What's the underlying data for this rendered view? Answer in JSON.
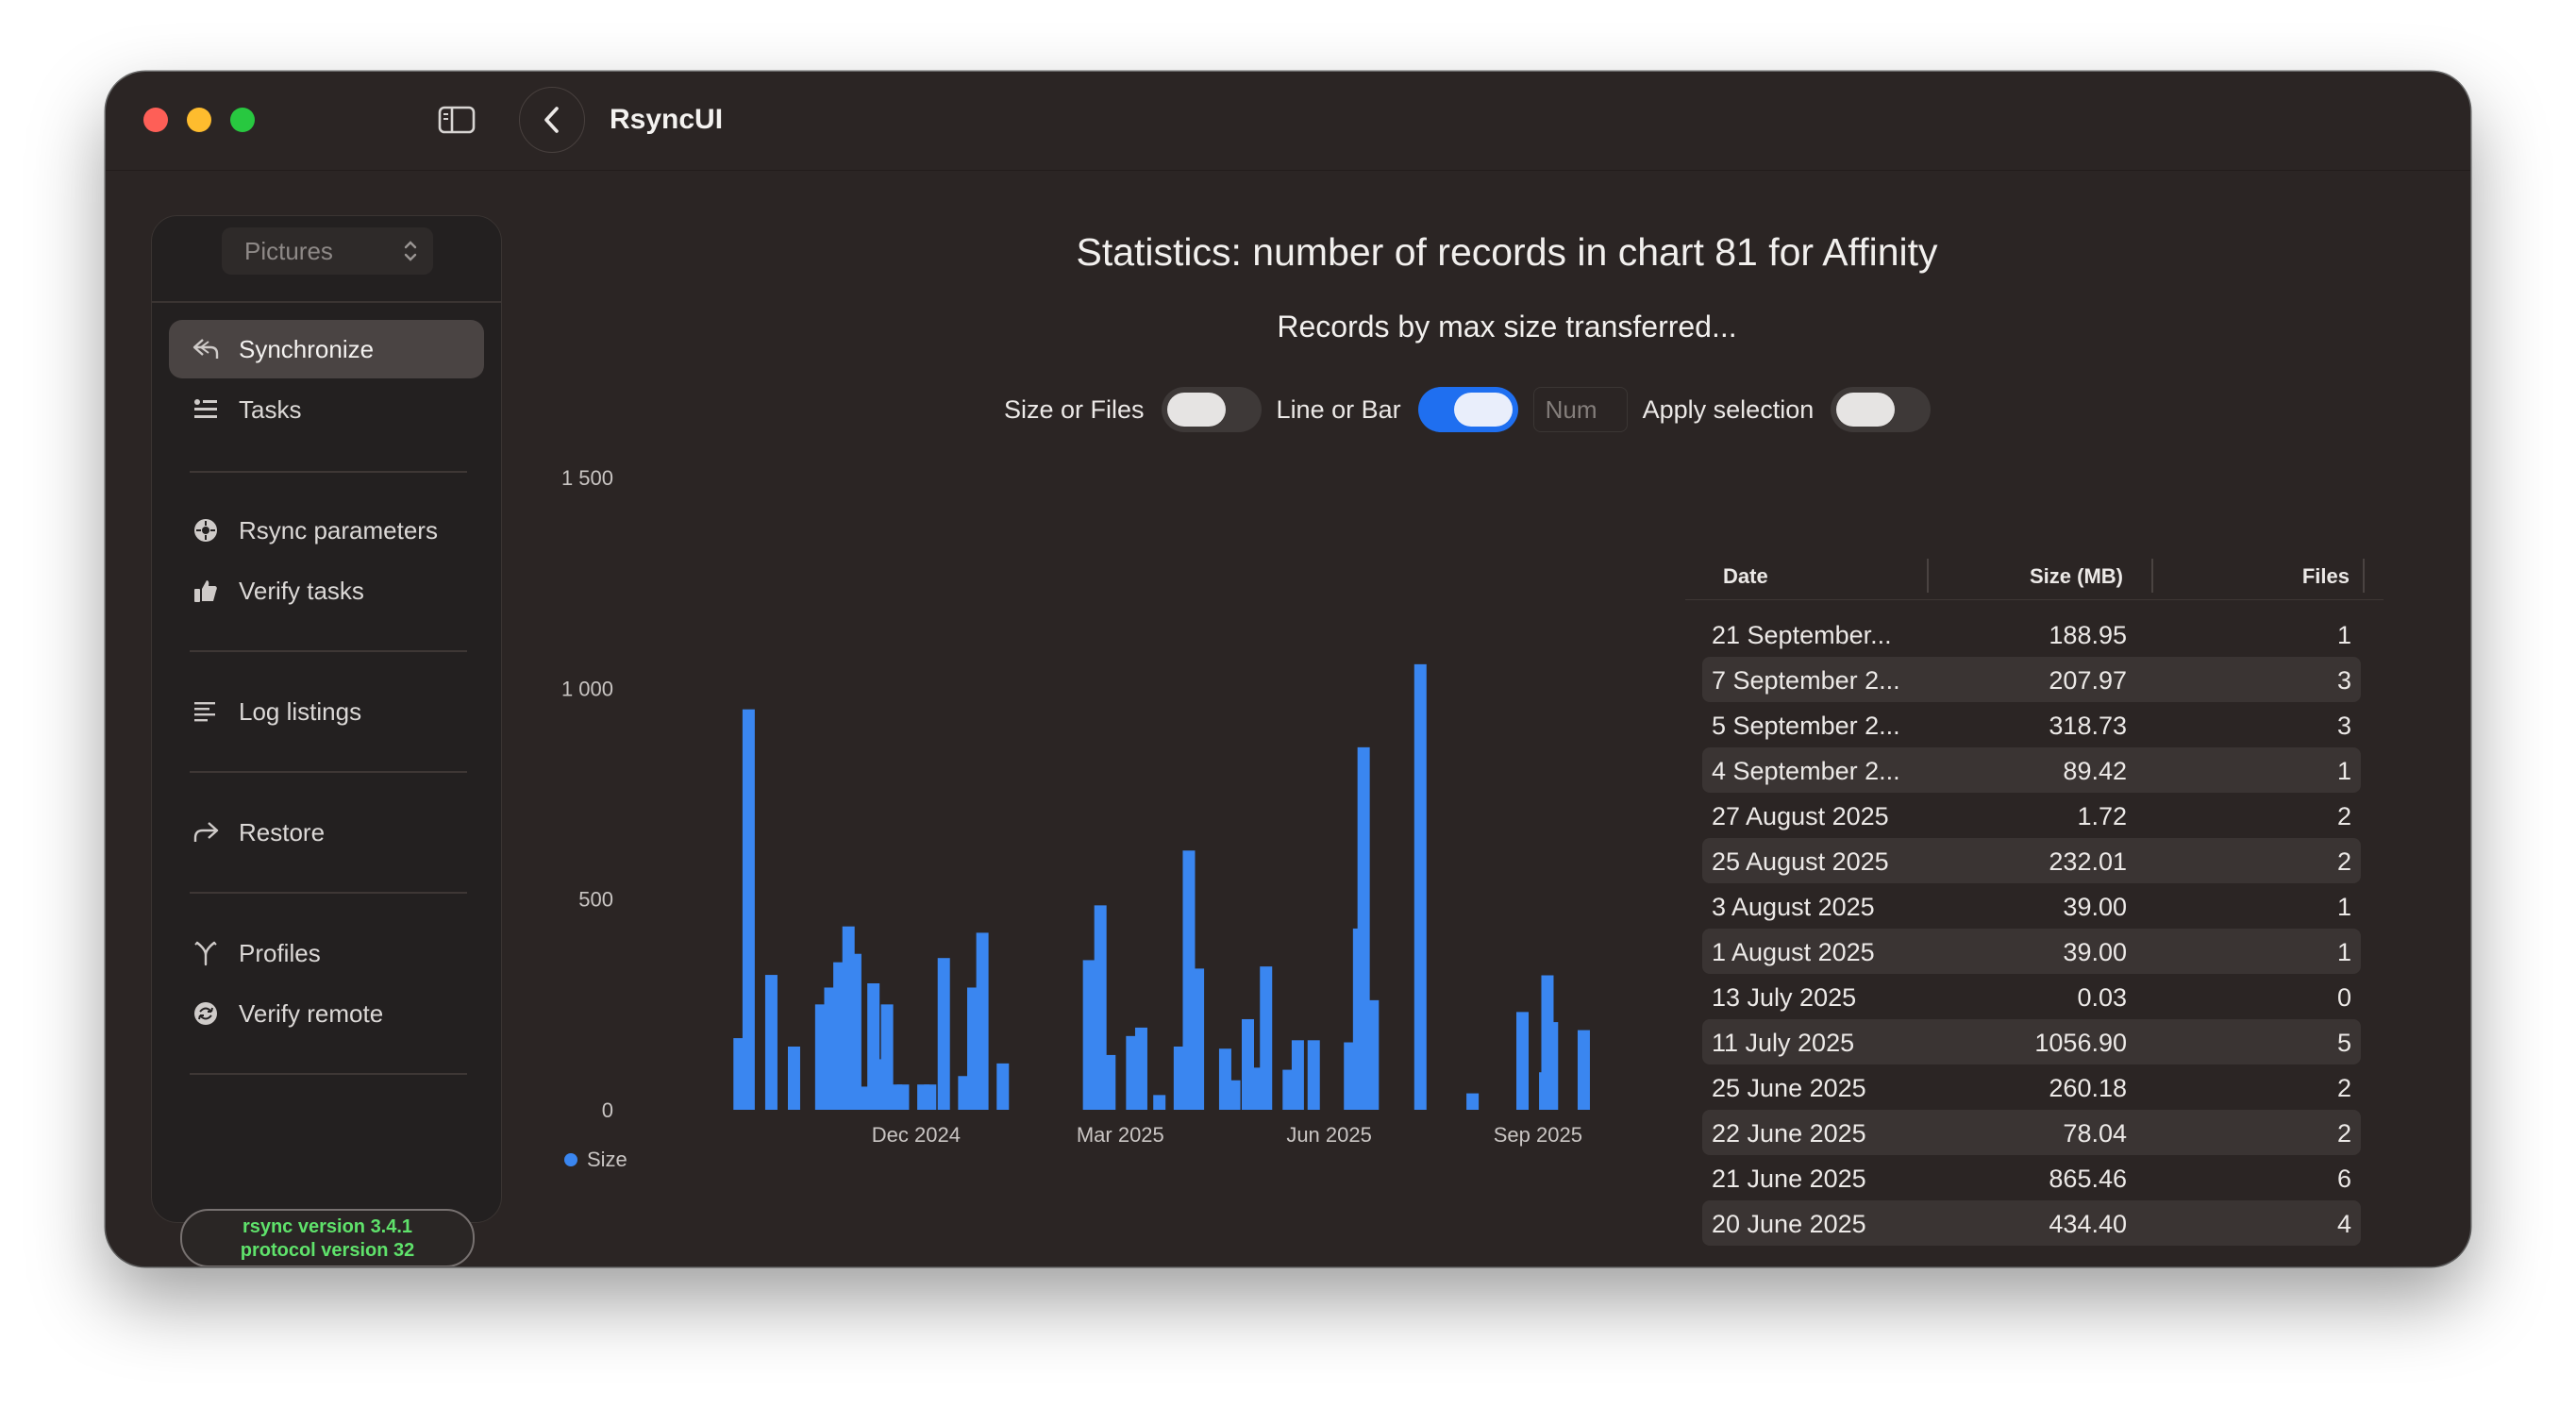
{
  "window": {
    "title": "RsyncUI"
  },
  "sidebar": {
    "profile_picker": "Pictures",
    "items": [
      {
        "label": "Synchronize",
        "icon": "synchronize-icon",
        "active": true
      },
      {
        "label": "Tasks",
        "icon": "tasks-icon"
      },
      {
        "label": "Rsync parameters",
        "icon": "rsync-parameters-icon"
      },
      {
        "label": "Verify tasks",
        "icon": "thumbs-up-icon"
      },
      {
        "label": "Log listings",
        "icon": "log-listings-icon"
      },
      {
        "label": "Restore",
        "icon": "restore-icon"
      },
      {
        "label": "Profiles",
        "icon": "profiles-icon"
      },
      {
        "label": "Verify remote",
        "icon": "verify-remote-icon"
      }
    ],
    "rsync_version": "rsync  version 3.4.1",
    "protocol_version": "protocol version 32"
  },
  "main": {
    "title": "Statistics: number of records in chart 81 for Affinity",
    "subtitle": "Records by max size transferred...",
    "controls": {
      "size_or_files_label": "Size or Files",
      "size_or_files_on": false,
      "line_or_bar_label": "Line or Bar",
      "line_or_bar_on": true,
      "num_placeholder": "Num",
      "apply_selection_label": "Apply selection",
      "apply_selection_on": false
    }
  },
  "chart_data": {
    "type": "bar",
    "y_ticks": [
      "1 500",
      "1 000",
      "500",
      "0"
    ],
    "x_ticks": [
      "Dec 2024",
      "Mar 2025",
      "Jun 2025",
      "Sep 2025"
    ],
    "ylim": [
      0,
      1500
    ],
    "legend": [
      {
        "name": "Size",
        "color": "#3a86f0"
      }
    ],
    "series": [
      {
        "name": "Size",
        "color": "#3a86f0",
        "points": [
          {
            "x": "2024-09-14",
            "y": 170
          },
          {
            "x": "2024-09-18",
            "y": 950
          },
          {
            "x": "2024-09-28",
            "y": 320
          },
          {
            "x": "2024-10-08",
            "y": 150
          },
          {
            "x": "2024-10-20",
            "y": 250
          },
          {
            "x": "2024-10-24",
            "y": 290
          },
          {
            "x": "2024-10-28",
            "y": 350
          },
          {
            "x": "2024-11-01",
            "y": 435
          },
          {
            "x": "2024-11-04",
            "y": 370
          },
          {
            "x": "2024-11-08",
            "y": 55
          },
          {
            "x": "2024-11-12",
            "y": 300
          },
          {
            "x": "2024-11-15",
            "y": 120
          },
          {
            "x": "2024-11-18",
            "y": 250
          },
          {
            "x": "2024-11-22",
            "y": 60
          },
          {
            "x": "2024-11-25",
            "y": 60
          },
          {
            "x": "2024-12-04",
            "y": 60
          },
          {
            "x": "2024-12-07",
            "y": 60
          },
          {
            "x": "2024-12-13",
            "y": 360
          },
          {
            "x": "2024-12-22",
            "y": 80
          },
          {
            "x": "2024-12-26",
            "y": 290
          },
          {
            "x": "2024-12-30",
            "y": 420
          },
          {
            "x": "2025-01-08",
            "y": 110
          },
          {
            "x": "2025-02-15",
            "y": 355
          },
          {
            "x": "2025-02-20",
            "y": 485
          },
          {
            "x": "2025-02-24",
            "y": 130
          },
          {
            "x": "2025-03-06",
            "y": 175
          },
          {
            "x": "2025-03-10",
            "y": 195
          },
          {
            "x": "2025-03-18",
            "y": 35
          },
          {
            "x": "2025-03-27",
            "y": 150
          },
          {
            "x": "2025-03-31",
            "y": 615
          },
          {
            "x": "2025-04-04",
            "y": 335
          },
          {
            "x": "2025-04-16",
            "y": 145
          },
          {
            "x": "2025-04-20",
            "y": 70
          },
          {
            "x": "2025-04-26",
            "y": 215
          },
          {
            "x": "2025-04-30",
            "y": 100
          },
          {
            "x": "2025-05-04",
            "y": 340
          },
          {
            "x": "2025-05-14",
            "y": 95
          },
          {
            "x": "2025-05-18",
            "y": 165
          },
          {
            "x": "2025-05-25",
            "y": 165
          },
          {
            "x": "2025-06-10",
            "y": 160
          },
          {
            "x": "2025-06-14",
            "y": 430
          },
          {
            "x": "2025-06-16",
            "y": 860
          },
          {
            "x": "2025-06-20",
            "y": 260
          },
          {
            "x": "2025-07-11",
            "y": 1057
          },
          {
            "x": "2025-08-03",
            "y": 39
          },
          {
            "x": "2025-08-25",
            "y": 232
          },
          {
            "x": "2025-09-04",
            "y": 89
          },
          {
            "x": "2025-09-05",
            "y": 319
          },
          {
            "x": "2025-09-07",
            "y": 208
          },
          {
            "x": "2025-09-21",
            "y": 189
          }
        ]
      }
    ]
  },
  "table": {
    "columns": [
      "Date",
      "Size (MB)",
      "Files"
    ],
    "rows": [
      {
        "date": "21 September...",
        "size": "188.95",
        "files": "1"
      },
      {
        "date": "7 September 2...",
        "size": "207.97",
        "files": "3"
      },
      {
        "date": "5 September 2...",
        "size": "318.73",
        "files": "3"
      },
      {
        "date": "4 September 2...",
        "size": "89.42",
        "files": "1"
      },
      {
        "date": "27 August 2025",
        "size": "1.72",
        "files": "2"
      },
      {
        "date": "25 August 2025",
        "size": "232.01",
        "files": "2"
      },
      {
        "date": "3 August 2025",
        "size": "39.00",
        "files": "1"
      },
      {
        "date": "1 August 2025",
        "size": "39.00",
        "files": "1"
      },
      {
        "date": "13 July 2025",
        "size": "0.03",
        "files": "0"
      },
      {
        "date": "11 July 2025",
        "size": "1056.90",
        "files": "5"
      },
      {
        "date": "25 June 2025",
        "size": "260.18",
        "files": "2"
      },
      {
        "date": "22 June 2025",
        "size": "78.04",
        "files": "2"
      },
      {
        "date": "21 June 2025",
        "size": "865.46",
        "files": "6"
      },
      {
        "date": "20 June 2025",
        "size": "434.40",
        "files": "4"
      }
    ]
  }
}
